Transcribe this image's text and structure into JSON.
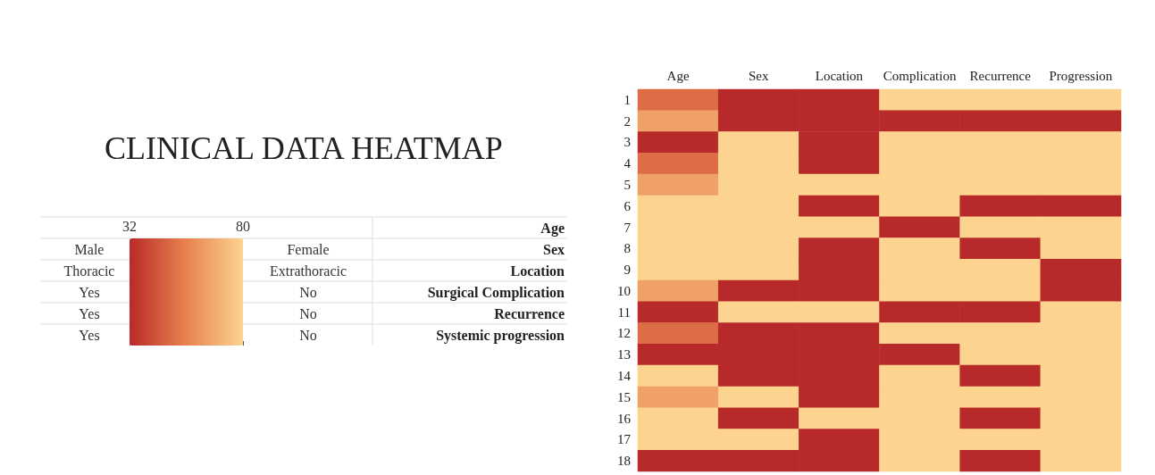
{
  "chart_data": {
    "type": "heatmap",
    "title": "CLINICAL DATA HEATMAP",
    "categories": [
      "Age",
      "Sex",
      "Location",
      "Complication",
      "Recurrence",
      "Progression"
    ],
    "y_categories": [
      "1",
      "2",
      "3",
      "4",
      "5",
      "6",
      "7",
      "8",
      "9",
      "10",
      "11",
      "12",
      "13",
      "14",
      "15",
      "16",
      "17",
      "18"
    ],
    "cells": [
      [
        50,
        32,
        32,
        80,
        80,
        80
      ],
      [
        65,
        32,
        32,
        32,
        32,
        32
      ],
      [
        32,
        80,
        32,
        80,
        80,
        80
      ],
      [
        50,
        80,
        32,
        80,
        80,
        80
      ],
      [
        65,
        80,
        80,
        80,
        80,
        80
      ],
      [
        80,
        80,
        32,
        80,
        32,
        32
      ],
      [
        80,
        80,
        80,
        32,
        80,
        80
      ],
      [
        80,
        80,
        32,
        80,
        32,
        80
      ],
      [
        80,
        80,
        32,
        80,
        80,
        32
      ],
      [
        65,
        32,
        32,
        80,
        80,
        32
      ],
      [
        32,
        80,
        80,
        32,
        32,
        80
      ],
      [
        50,
        32,
        32,
        80,
        80,
        80
      ],
      [
        32,
        32,
        32,
        32,
        80,
        80
      ],
      [
        80,
        32,
        32,
        80,
        32,
        80
      ],
      [
        65,
        80,
        32,
        80,
        80,
        80
      ],
      [
        80,
        32,
        80,
        80,
        32,
        80
      ],
      [
        80,
        80,
        32,
        80,
        80,
        80
      ],
      [
        32,
        32,
        32,
        80,
        32,
        80
      ]
    ],
    "clim": [
      32,
      80
    ],
    "cticks": [
      32,
      80
    ],
    "clabel": "Age",
    "annotations": [
      "Male",
      "Female",
      "Sex",
      "Thoracic",
      "Extrathoracic",
      "Location",
      "Yes",
      "No",
      "Surgical Complication",
      "Yes",
      "No",
      "Recurrence",
      "Yes",
      "No",
      "Systemic progression"
    ]
  }
}
